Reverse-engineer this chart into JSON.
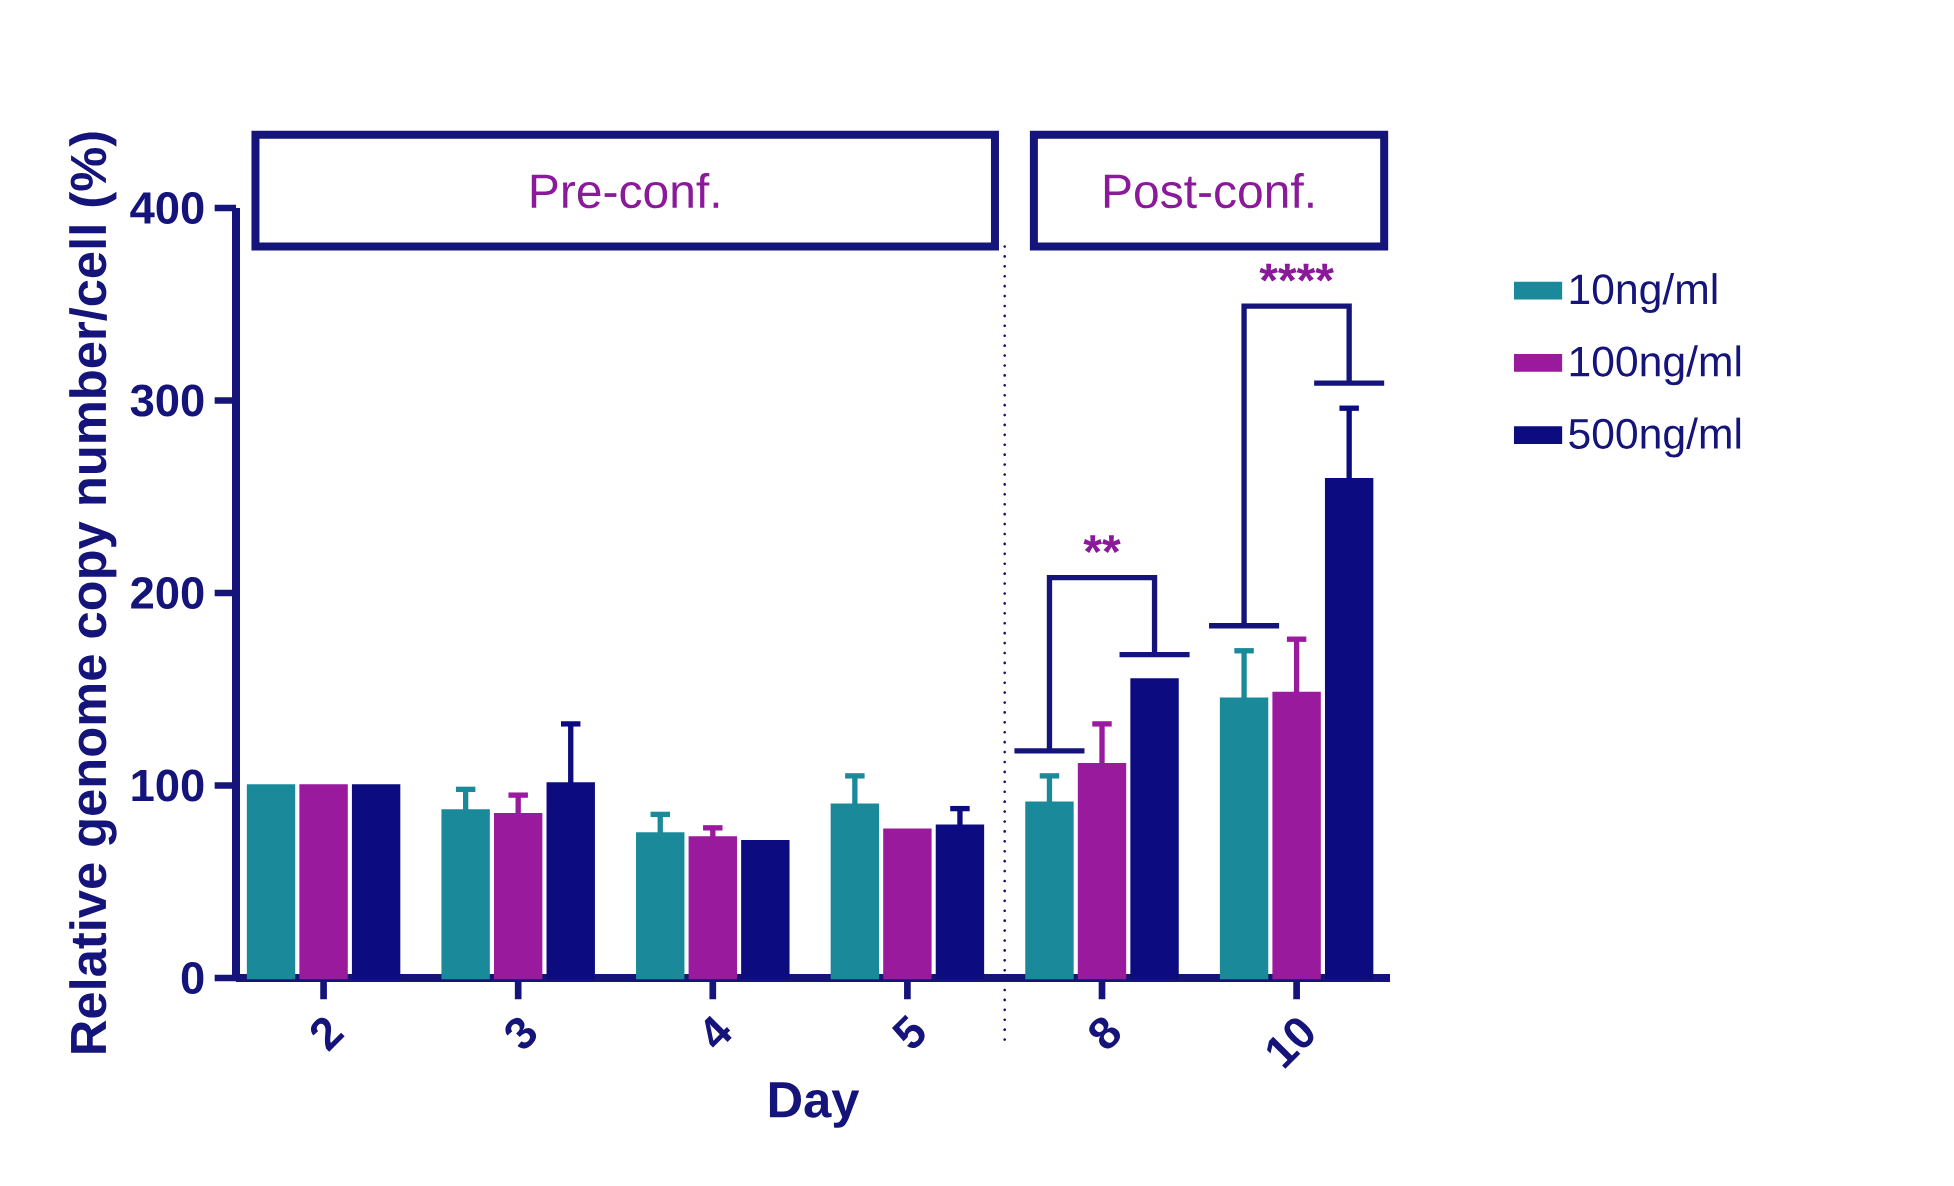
{
  "chart_data": {
    "type": "bar",
    "xlabel": "Day",
    "ylabel": "Relative genome copy number/cell (%)",
    "categories": [
      "2",
      "3",
      "4",
      "5",
      "8",
      "10"
    ],
    "series": [
      {
        "name": "10ng/ml",
        "color": "#1a8a9a",
        "values": [
          100,
          87,
          75,
          90,
          91,
          145
        ],
        "errors": [
          null,
          [
            87,
            98
          ],
          [
            75,
            85
          ],
          [
            90,
            105
          ],
          [
            91,
            105
          ],
          [
            145,
            170
          ]
        ]
      },
      {
        "name": "100ng/ml",
        "color": "#9a1a9e",
        "values": [
          100,
          85,
          73,
          77,
          111,
          148
        ],
        "errors": [
          null,
          [
            85,
            95
          ],
          [
            73,
            78
          ],
          null,
          [
            111,
            132
          ],
          [
            148,
            176
          ]
        ]
      },
      {
        "name": "500ng/ml",
        "color": "#0c0c80",
        "values": [
          100,
          101,
          71,
          79,
          155,
          259
        ],
        "errors": [
          null,
          [
            101,
            132
          ],
          null,
          [
            79,
            88
          ],
          null,
          [
            259,
            296
          ]
        ]
      }
    ],
    "ylim": [
      0,
      400
    ],
    "yticks": [
      0,
      100,
      200,
      300,
      400
    ],
    "bands": [
      {
        "axis": "x",
        "from": "2",
        "to": "5",
        "label": "Pre-conf."
      },
      {
        "axis": "x",
        "from": "8",
        "to": "10",
        "label": "Post-conf."
      }
    ],
    "annotations": [
      "**",
      "****"
    ],
    "legend": "right",
    "grid": false
  }
}
